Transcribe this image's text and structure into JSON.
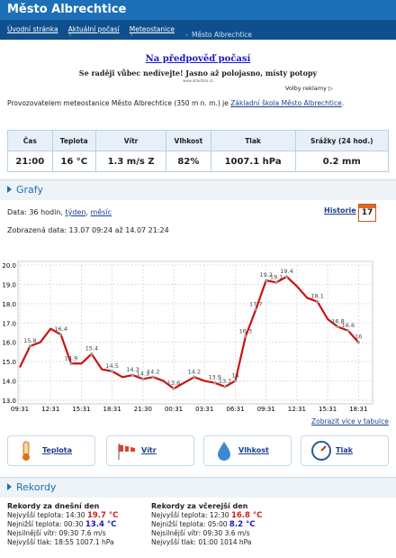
{
  "header": {
    "title": "Město Albrechtice"
  },
  "breadcrumb": [
    "Úvodní stránka",
    "Aktuální počasí",
    "Meteostanice",
    "Město Albrechtice"
  ],
  "ad": {
    "title": "Na předpověď počasí",
    "text": "Se raději vůbec nedívejte! Jasno až polojasno, místy potopy",
    "url": "www.atlasfoto.cz",
    "options": "Volby reklamy"
  },
  "operator": {
    "text": "Provozovatelem meteostanice Město Albrechtice (350 m n. m.) je",
    "link": "Základní škola Město Albrechtice",
    "end": "."
  },
  "current": {
    "headers": [
      "Čas",
      "Teplota",
      "Vítr",
      "Vlhkost",
      "Tlak",
      "Srážky (24 hod.)"
    ],
    "values": [
      "21:00",
      "16 °C",
      "1.3 m/s Z",
      "82%",
      "1007.1 hPa",
      "0.2 mm"
    ]
  },
  "graphs": {
    "title": "Grafy",
    "data_label": "Data: 36 hodin,",
    "links": [
      "týden",
      "měsíc"
    ],
    "sep": ",",
    "history": "Historie",
    "calendar": "17",
    "shown": "Zobrazená data: 13.07 09:24 až 14.07 21:24",
    "more": "Zobrazit více v tabulce",
    "tabs": [
      "Teplota",
      "Vítr",
      "Vlhkost",
      "Tlak"
    ]
  },
  "chart_data": {
    "type": "line",
    "x": [
      0,
      1,
      2,
      3,
      4,
      5,
      6,
      7,
      8,
      9,
      10,
      11,
      12,
      13,
      14,
      15,
      16,
      17,
      18,
      19,
      20,
      21,
      22,
      23,
      24,
      25,
      26,
      27,
      28,
      29,
      30,
      31,
      32,
      33
    ],
    "series": [
      {
        "name": "Teplota",
        "color": "#cc1111",
        "values": [
          14.7,
          15.8,
          16.0,
          16.7,
          16.4,
          14.9,
          14.9,
          15.4,
          14.6,
          14.5,
          14.2,
          14.3,
          14.1,
          14.2,
          14.0,
          13.6,
          13.9,
          14.2,
          14.0,
          13.9,
          13.7,
          14.0,
          16.3,
          17.7,
          19.2,
          19.1,
          19.4,
          18.9,
          18.3,
          18.1,
          17.2,
          16.8,
          16.6,
          16.0
        ],
        "value_labels": [
          null,
          "15.8",
          null,
          null,
          "16.4",
          "14.9",
          null,
          "15.4",
          null,
          "14.5",
          null,
          "14.3",
          "14.1",
          "14.2",
          null,
          "13.6",
          null,
          "14.2",
          null,
          "13.9",
          "13.7",
          "14",
          "16.3",
          "17.7",
          "19.2",
          "19.1",
          "19.4",
          null,
          null,
          "18.1",
          null,
          "16.8",
          "16.6",
          "16"
        ]
      }
    ],
    "xlim": [
      0,
      34.2
    ],
    "xticks": [
      {
        "value": 0,
        "label": "09:31"
      },
      {
        "value": 3,
        "label": "12:31"
      },
      {
        "value": 6,
        "label": "15:31"
      },
      {
        "value": 9,
        "label": "18:31"
      },
      {
        "value": 12,
        "label": "21:30"
      },
      {
        "value": 15,
        "label": "00:31"
      },
      {
        "value": 18,
        "label": "03:31"
      },
      {
        "value": 21,
        "label": "06:31"
      },
      {
        "value": 24,
        "label": "09:31"
      },
      {
        "value": 27,
        "label": "12:31"
      },
      {
        "value": 30,
        "label": "15:31"
      },
      {
        "value": 33,
        "label": "18:31"
      }
    ],
    "ylim": [
      13,
      20
    ],
    "yticks": [
      {
        "value": 13,
        "label": "13.0"
      },
      {
        "value": 14,
        "label": "14.0"
      },
      {
        "value": 15,
        "label": "15.0"
      },
      {
        "value": 16,
        "label": "16.0"
      },
      {
        "value": 17,
        "label": "17.0"
      },
      {
        "value": 18,
        "label": "18.0"
      },
      {
        "value": 19,
        "label": "19.0"
      },
      {
        "value": 20,
        "label": "20.0"
      }
    ],
    "grid": true
  },
  "records": {
    "title": "Rekordy",
    "columns": [
      {
        "title": "Rekordy za dnešní den",
        "items": [
          {
            "label": "Nejvyšší teplota:",
            "time": "14:30",
            "value": "19.7 °C"
          },
          {
            "label": "Nejnižší teplota:",
            "time": "00:30",
            "value": "13.4 °C"
          },
          {
            "label": "Nejsilnější vítr:",
            "time": "09:30",
            "value": "7.6 m/s"
          },
          {
            "label": "Nejvyšší tlak:",
            "time": "18:55",
            "value": "1007.1 hPa"
          }
        ]
      },
      {
        "title": "Rekordy za včerejší den",
        "items": [
          {
            "label": "Nejvyšší teplota:",
            "time": "12:30",
            "value": "16.8 °C"
          },
          {
            "label": "Nejnižší teplota:",
            "time": "05:00",
            "value": "8.2 °C"
          },
          {
            "label": "Nejsilnější vítr:",
            "time": "09:30",
            "value": "3.6 m/s"
          },
          {
            "label": "Nejvyšší tlak:",
            "time": "01:00",
            "value": "1014 hPa"
          }
        ]
      }
    ]
  }
}
